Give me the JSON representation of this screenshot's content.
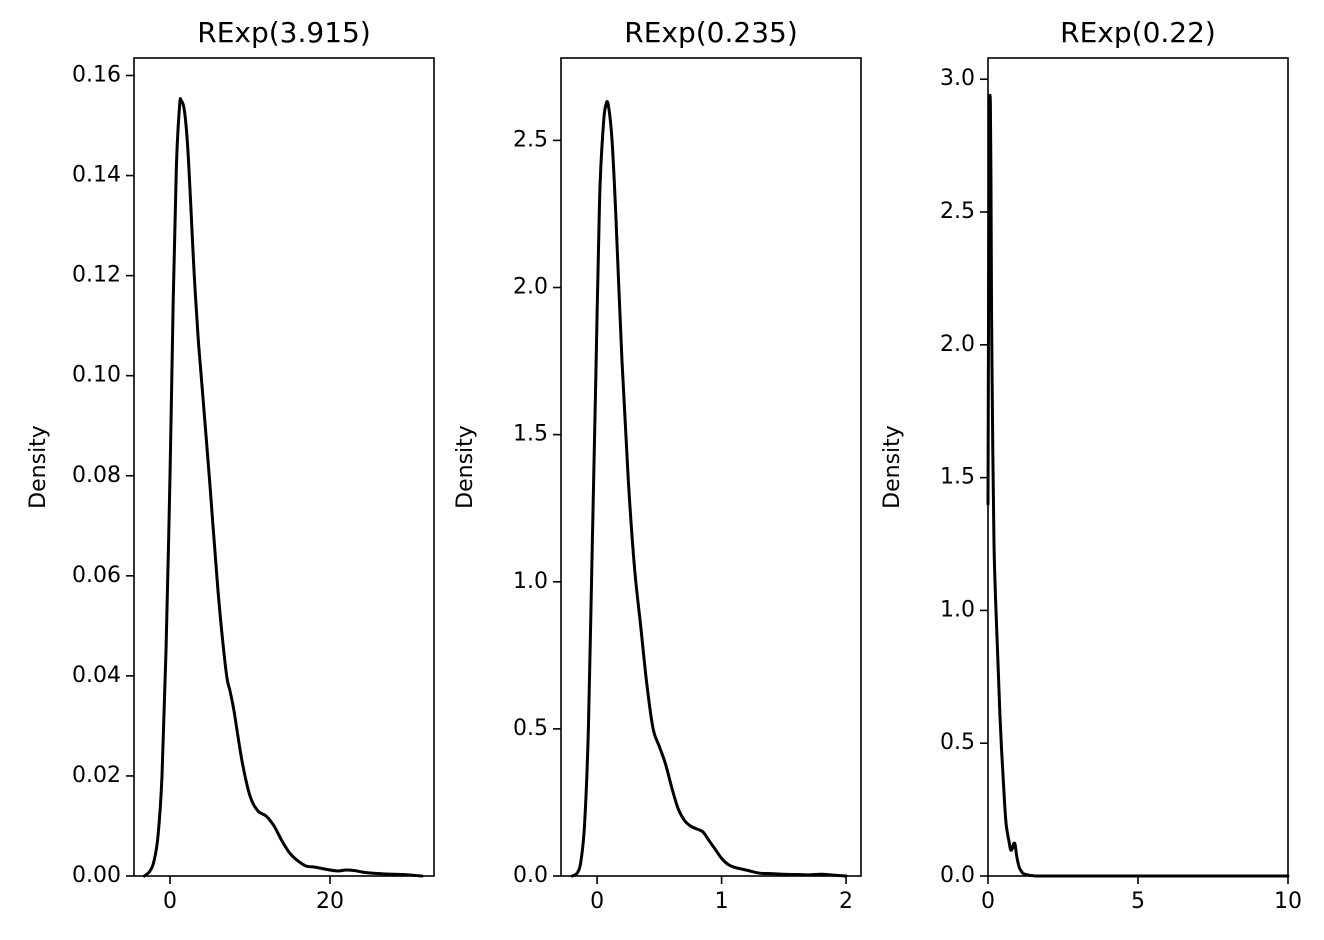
{
  "chart_data": [
    {
      "type": "line",
      "title": "RExp(3.915)",
      "xlabel": "",
      "ylabel": "Density",
      "xlim": [
        -4.5,
        33
      ],
      "ylim": [
        0,
        0.1635
      ],
      "xticks": [
        0,
        20
      ],
      "yticks": [
        0.0,
        0.02,
        0.04,
        0.06,
        0.08,
        0.1,
        0.12,
        0.14,
        0.16
      ],
      "ytick_labels": [
        "0.00",
        "0.02",
        "0.04",
        "0.06",
        "0.08",
        "0.10",
        "0.12",
        "0.14",
        "0.16"
      ],
      "grid": false,
      "line_color": "#000000",
      "series": [
        {
          "x": [
            -3.2,
            -2.5,
            -2.0,
            -1.5,
            -1.0,
            -0.5,
            0.0,
            0.4,
            0.8,
            1.2,
            1.4,
            1.8,
            2.2,
            2.6,
            3.0,
            3.5,
            4.0,
            5.0,
            6.0,
            7.0,
            7.5,
            8.0,
            9.0,
            10.0,
            11.0,
            12.0,
            13.0,
            14.0,
            15.0,
            16.0,
            17.0,
            18.0,
            19.0,
            20.0,
            21.0,
            22.0,
            23.0,
            24.0,
            25.0,
            27.0,
            29.0,
            31.5
          ],
          "y": [
            0.0,
            0.001,
            0.003,
            0.008,
            0.02,
            0.045,
            0.08,
            0.115,
            0.142,
            0.154,
            0.155,
            0.153,
            0.146,
            0.134,
            0.121,
            0.108,
            0.098,
            0.078,
            0.057,
            0.041,
            0.037,
            0.033,
            0.023,
            0.016,
            0.013,
            0.012,
            0.01,
            0.007,
            0.0045,
            0.003,
            0.002,
            0.0018,
            0.0015,
            0.0012,
            0.001,
            0.0012,
            0.0011,
            0.0008,
            0.0006,
            0.0004,
            0.0003,
            0.0
          ]
        }
      ]
    },
    {
      "type": "line",
      "title": "RExp(0.235)",
      "xlabel": "",
      "ylabel": "Density",
      "xlim": [
        -0.29,
        2.12
      ],
      "ylim": [
        0,
        2.78
      ],
      "xticks": [
        0,
        1,
        2
      ],
      "yticks": [
        0.0,
        0.5,
        1.0,
        1.5,
        2.0,
        2.5
      ],
      "ytick_labels": [
        "0.0",
        "0.5",
        "1.0",
        "1.5",
        "2.0",
        "2.5"
      ],
      "grid": false,
      "line_color": "#000000",
      "series": [
        {
          "x": [
            -0.2,
            -0.16,
            -0.13,
            -0.1,
            -0.07,
            -0.04,
            -0.01,
            0.02,
            0.05,
            0.07,
            0.09,
            0.12,
            0.15,
            0.2,
            0.25,
            0.3,
            0.35,
            0.4,
            0.45,
            0.5,
            0.55,
            0.6,
            0.65,
            0.7,
            0.75,
            0.8,
            0.85,
            0.9,
            0.95,
            1.0,
            1.05,
            1.1,
            1.2,
            1.3,
            1.4,
            1.5,
            1.6,
            1.7,
            1.8,
            1.9,
            2.0
          ],
          "y": [
            0.0,
            0.01,
            0.05,
            0.18,
            0.5,
            1.1,
            1.7,
            2.3,
            2.55,
            2.62,
            2.62,
            2.5,
            2.25,
            1.75,
            1.35,
            1.05,
            0.85,
            0.65,
            0.5,
            0.44,
            0.38,
            0.3,
            0.23,
            0.19,
            0.17,
            0.16,
            0.15,
            0.12,
            0.09,
            0.06,
            0.04,
            0.03,
            0.02,
            0.01,
            0.008,
            0.006,
            0.005,
            0.004,
            0.006,
            0.003,
            0.0
          ]
        }
      ]
    },
    {
      "type": "line",
      "title": "RExp(0.22)",
      "xlabel": "",
      "ylabel": "Density",
      "xlim": [
        0,
        10
      ],
      "ylim": [
        0,
        3.08
      ],
      "xticks": [
        0,
        5,
        10
      ],
      "yticks": [
        0.0,
        0.5,
        1.0,
        1.5,
        2.0,
        2.5,
        3.0
      ],
      "ytick_labels": [
        "0.0",
        "0.5",
        "1.0",
        "1.5",
        "2.0",
        "2.5",
        "3.0"
      ],
      "grid": false,
      "line_color": "#000000",
      "series": [
        {
          "x": [
            0.0,
            0.02,
            0.04,
            0.06,
            0.08,
            0.1,
            0.12,
            0.16,
            0.2,
            0.25,
            0.3,
            0.35,
            0.4,
            0.45,
            0.5,
            0.55,
            0.6,
            0.65,
            0.7,
            0.75,
            0.8,
            0.85,
            0.9,
            0.95,
            1.0,
            1.05,
            1.1,
            1.15,
            1.2,
            1.3,
            1.4,
            1.5,
            1.6,
            2.0,
            3.0,
            5.0,
            7.0,
            9.0,
            10.0
          ],
          "y": [
            1.4,
            2.2,
            2.75,
            2.92,
            2.9,
            2.6,
            2.1,
            1.6,
            1.25,
            1.05,
            0.9,
            0.75,
            0.6,
            0.48,
            0.38,
            0.28,
            0.2,
            0.16,
            0.13,
            0.1,
            0.1,
            0.12,
            0.12,
            0.08,
            0.05,
            0.03,
            0.02,
            0.012,
            0.008,
            0.005,
            0.002,
            0.001,
            0.0,
            0.0,
            0.0,
            0.0,
            0.0,
            0.0,
            0.0
          ]
        }
      ]
    }
  ]
}
